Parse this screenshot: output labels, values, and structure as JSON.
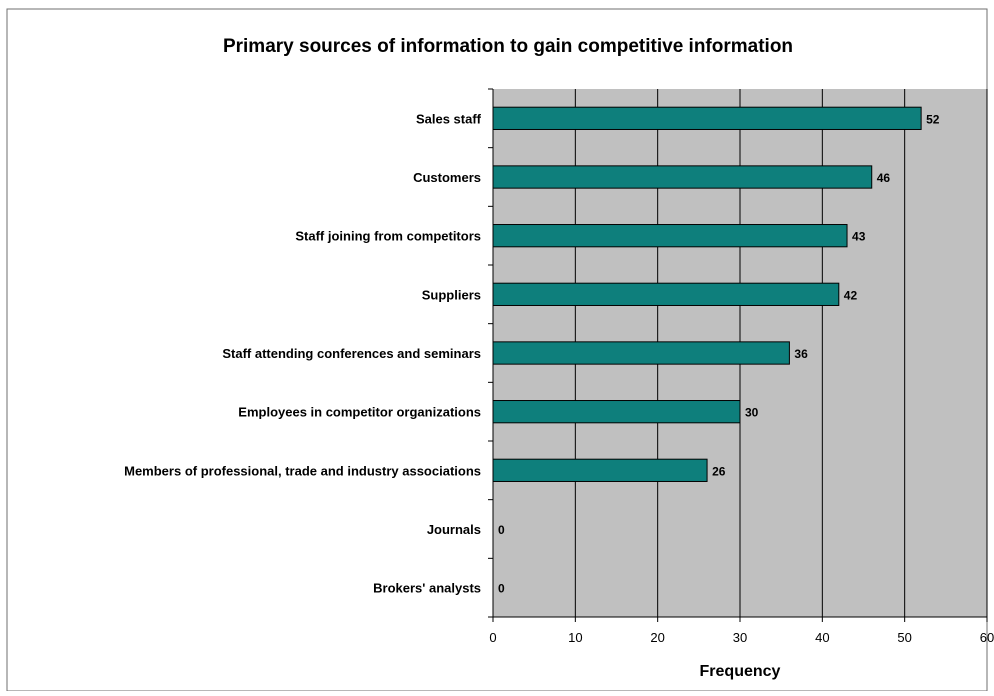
{
  "chart_data": {
    "type": "bar",
    "orientation": "horizontal",
    "title": "Primary sources of information to gain competitive information",
    "xlabel": "Frequency",
    "ylabel": "",
    "categories": [
      "Sales staff",
      "Customers",
      "Staff joining from competitors",
      "Suppliers",
      "Staff attending conferences and seminars",
      "Employees in competitor organizations",
      "Members of professional, trade and industry associations",
      "Journals",
      "Brokers' analysts"
    ],
    "values": [
      52,
      46,
      43,
      42,
      36,
      30,
      26,
      0,
      0
    ],
    "xlim": [
      0,
      60
    ],
    "xticks": [
      0,
      10,
      20,
      30,
      40,
      50,
      60
    ],
    "grid": "vertical",
    "legend": "none",
    "data_labels": true,
    "colors": {
      "bar": "#0e7f7c",
      "plot_background": "#c0c0c0",
      "gridline": "#000000",
      "frame": "#6f6f6f"
    }
  }
}
